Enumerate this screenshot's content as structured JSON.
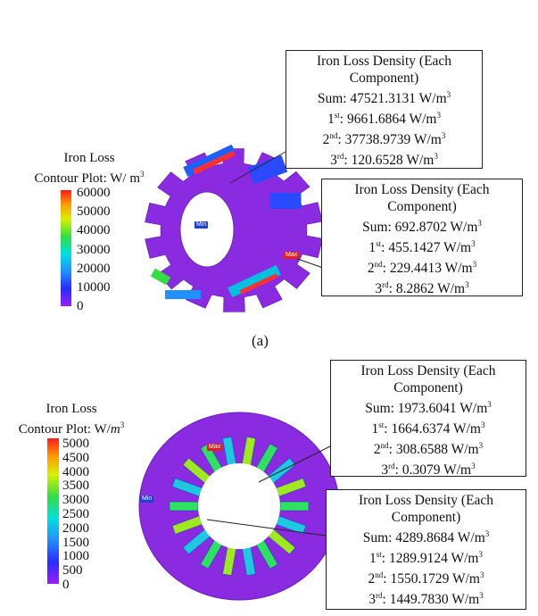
{
  "panel_a": {
    "caption": "(a)",
    "legend": {
      "title_line1": "Iron Loss",
      "title_line2": "Contour Plot: W/ m",
      "title_sup": "3",
      "ticks": [
        "60000",
        "50000",
        "40000",
        "30000",
        "20000",
        "10000",
        "0"
      ]
    },
    "markers": {
      "min": "Min",
      "max": "Max"
    },
    "boxes": [
      {
        "title": "Iron Loss Density (Each",
        "title2": "Component)",
        "sum": "Sum: 47521.3131 W/m",
        "first": "9661.6864 W/m",
        "second": "37738.9739 W/m",
        "third": "120.6528 W/m"
      },
      {
        "title": "Iron Loss Density (Each",
        "title2": "Component)",
        "sum": "Sum: 692.8702 W/m",
        "first": "455.1427 W/m",
        "second": "229.4413 W/m",
        "third": "8.2862 W/m"
      }
    ]
  },
  "panel_b": {
    "legend": {
      "title_line1": "Iron Loss",
      "title_line2": "Contour Plot: W/",
      "title_unit": "m",
      "title_sup": "3",
      "ticks": [
        "5000",
        "4500",
        "4000",
        "3500",
        "3000",
        "2500",
        "2000",
        "1500",
        "1000",
        "500",
        "0"
      ]
    },
    "markers": {
      "min": "Min",
      "max": "Max"
    },
    "boxes": [
      {
        "title": "Iron Loss Density (Each",
        "title2": "Component)",
        "sum": "Sum: 1973.6041 W/m",
        "first": "1664.6374 W/m",
        "second": "308.6588 W/m",
        "third": "0.3079 W/m"
      },
      {
        "title": "Iron Loss Density (Each",
        "title2": "Component)",
        "sum": "Sum: 4289.8684 W/m",
        "first": "1289.9124 W/m",
        "second": "1550.1729 W/m",
        "third": "1449.7830 W/m"
      }
    ]
  },
  "ordinals": {
    "first": "st",
    "second": "nd",
    "third": "rd",
    "n1": "1",
    "n2": "2",
    "n3": "3",
    "sup": "3"
  },
  "colors": {
    "min": "#8a2be2",
    "max": "#ff2020",
    "frame": "#222222"
  }
}
